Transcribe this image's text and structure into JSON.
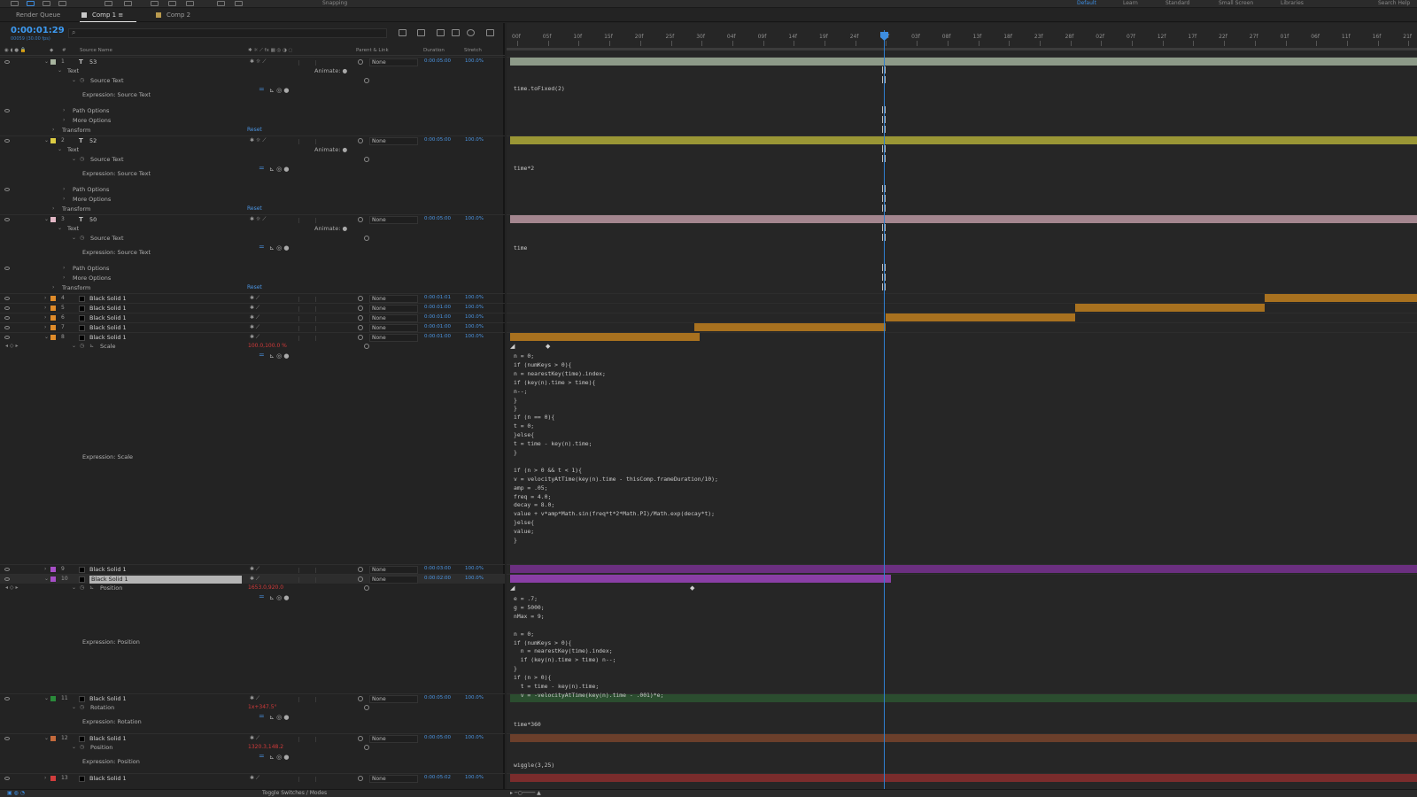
{
  "workspaces": [
    "Default",
    "Learn",
    "Standard",
    "Small Screen",
    "Libraries"
  ],
  "snapping_label": "Snapping",
  "search_help_label": "Search Help",
  "tabs": [
    {
      "label": "Render Queue",
      "active": false
    },
    {
      "label": "Comp 1",
      "active": true,
      "color": "#c9c9c9"
    },
    {
      "label": "Comp 2",
      "active": false,
      "color": "#b99a4e"
    }
  ],
  "timecode": "0:00:01:29",
  "fps": "00059 (30.00 fps)",
  "columns": {
    "source_name": "Source Name",
    "parent": "Parent & Link",
    "duration": "Duration",
    "stretch": "Stretch"
  },
  "ruler_ticks": [
    "00f",
    "05f",
    "10f",
    "15f",
    "20f",
    "25f",
    "30f",
    "04f",
    "09f",
    "14f",
    "19f",
    "24f",
    "29f",
    "03f",
    "08f",
    "13f",
    "18f",
    "23f",
    "28f",
    "02f",
    "07f",
    "12f",
    "17f",
    "22f",
    "27f",
    "01f",
    "06f",
    "11f",
    "16f",
    "21f"
  ],
  "layers": [
    {
      "num": "1",
      "type": "T",
      "name": "53",
      "color": "#a9b6a0",
      "parent": "None",
      "duration": "0:00:05:00",
      "stretch": "100.0%",
      "bar_color": "#8d9a88"
    },
    {
      "num": "2",
      "type": "T",
      "name": "52",
      "color": "#dccc43",
      "parent": "None",
      "duration": "0:00:05:00",
      "stretch": "100.0%",
      "bar_color": "#9a9635"
    },
    {
      "num": "3",
      "type": "T",
      "name": "50",
      "color": "#e3b8c6",
      "parent": "None",
      "duration": "0:00:05:00",
      "stretch": "100.0%",
      "bar_color": "#a4868f"
    },
    {
      "num": "4",
      "name": "Black Solid 1",
      "color": "#e08c2a",
      "parent": "None",
      "duration": "0:00:01:01",
      "stretch": "100.0%"
    },
    {
      "num": "5",
      "name": "Black Solid 1",
      "color": "#e08c2a",
      "parent": "None",
      "duration": "0:00:01:00",
      "stretch": "100.0%"
    },
    {
      "num": "6",
      "name": "Black Solid 1",
      "color": "#e08c2a",
      "parent": "None",
      "duration": "0:00:01:00",
      "stretch": "100.0%"
    },
    {
      "num": "7",
      "name": "Black Solid 1",
      "color": "#e08c2a",
      "parent": "None",
      "duration": "0:00:01:00",
      "stretch": "100.0%"
    },
    {
      "num": "8",
      "name": "Black Solid 1",
      "color": "#e08c2a",
      "parent": "None",
      "duration": "0:00:01:00",
      "stretch": "100.0%"
    },
    {
      "num": "9",
      "name": "Black Solid 1",
      "color": "#a74fc7",
      "parent": "None",
      "duration": "0:00:03:00",
      "stretch": "100.0%"
    },
    {
      "num": "10",
      "name": "Black Solid 1",
      "color": "#a74fc7",
      "parent": "None",
      "duration": "0:00:02:00",
      "stretch": "100.0%"
    },
    {
      "num": "11",
      "name": "Black Solid 1",
      "color": "#2a8a3a",
      "parent": "None",
      "duration": "0:00:05:00",
      "stretch": "100.0%"
    },
    {
      "num": "12",
      "name": "Black Solid 1",
      "color": "#c46a3c",
      "parent": "None",
      "duration": "0:00:05:00",
      "stretch": "100.0%"
    },
    {
      "num": "13",
      "name": "Black Solid 1",
      "color": "#d13d3d",
      "parent": "None",
      "duration": "0:00:05:02",
      "stretch": "100.0%"
    }
  ],
  "props": {
    "text": "Text",
    "source_text": "Source Text",
    "expr_source_text": "Expression: Source Text",
    "path_options": "Path Options",
    "more_options": "More Options",
    "transform": "Transform",
    "reset": "Reset",
    "animate": "Animate:",
    "scale": "Scale",
    "scale_value": "100.0,100.0 %",
    "expr_scale": "Expression: Scale",
    "position": "Position",
    "position_value_10": "1653.0,920.0",
    "expr_position": "Expression: Position",
    "rotation": "Rotation",
    "rotation_value": "1x+347.5°",
    "expr_rotation": "Expression: Rotation",
    "position_value_12": "1320.3,148.2"
  },
  "expressions": {
    "layer1": "time.toFixed(2)",
    "layer2": "time*2",
    "layer3": "time",
    "scale": "n = 0;\nif (numKeys > 0){\nn = nearestKey(time).index;\nif (key(n).time > time){\nn--;\n}\n}\nif (n == 0){\nt = 0;\n}else{\nt = time - key(n).time;\n}\n\nif (n > 0 && t < 1){\nv = velocityAtTime(key(n).time - thisComp.frameDuration/10);\namp = .05;\nfreq = 4.0;\ndecay = 8.0;\nvalue + v*amp*Math.sin(freq*t*2*Math.PI)/Math.exp(decay*t);\n}else{\nvalue;\n}",
    "position": "e = .7;\ng = 5000;\nnMax = 9;\n\nn = 0;\nif (numKeys > 0){\n  n = nearestKey(time).index;\n  if (key(n).time > time) n--;\n}\nif (n > 0){\n  t = time - key(n).time;\n  v = -velocityAtTime(key(n).time - .001)*e;",
    "rotation": "time*360",
    "position12": "wiggle(3,25)"
  },
  "bottom": {
    "toggle_label": "Toggle Switches / Modes"
  }
}
